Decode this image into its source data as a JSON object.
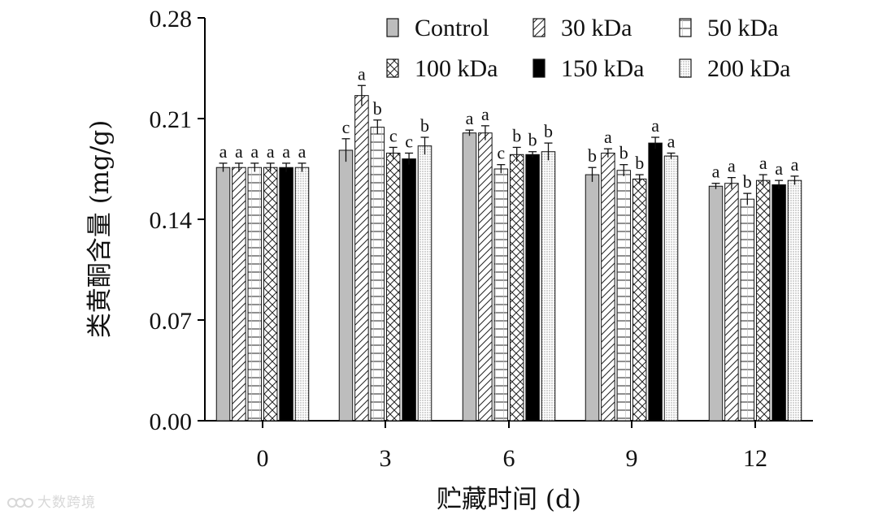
{
  "chart_data": {
    "type": "bar",
    "title": "",
    "xlabel": "贮藏时间 (d)",
    "ylabel": "类黄酮含量 (mg/g)",
    "ylim": [
      0,
      0.28
    ],
    "yticks": [
      "0.00",
      "0.07",
      "0.14",
      "0.21",
      "0.28"
    ],
    "categories": [
      "0",
      "3",
      "6",
      "9",
      "12"
    ],
    "grid": false,
    "legend_position": "top-right",
    "series": [
      {
        "name": "Control",
        "pattern": "gray",
        "values": [
          0.176,
          0.188,
          0.2,
          0.171,
          0.163
        ],
        "errors": [
          0.003,
          0.008,
          0.002,
          0.005,
          0.002
        ],
        "labels": [
          "a",
          "c",
          "a",
          "b",
          "a"
        ]
      },
      {
        "name": "30 kDa",
        "pattern": "diagonal",
        "values": [
          0.176,
          0.226,
          0.2,
          0.186,
          0.165
        ],
        "errors": [
          0.003,
          0.007,
          0.005,
          0.003,
          0.004
        ],
        "labels": [
          "a",
          "a",
          "a",
          "a",
          "a"
        ]
      },
      {
        "name": "50 kDa",
        "pattern": "horizontal",
        "values": [
          0.176,
          0.204,
          0.175,
          0.174,
          0.154
        ],
        "errors": [
          0.003,
          0.005,
          0.003,
          0.004,
          0.004
        ],
        "labels": [
          "a",
          "b",
          "c",
          "b",
          "b"
        ]
      },
      {
        "name": "100 kDa",
        "pattern": "crosshatch",
        "values": [
          0.176,
          0.186,
          0.185,
          0.168,
          0.167
        ],
        "errors": [
          0.003,
          0.004,
          0.005,
          0.003,
          0.004
        ],
        "labels": [
          "a",
          "c",
          "b",
          "b",
          "a"
        ]
      },
      {
        "name": "150 kDa",
        "pattern": "black",
        "values": [
          0.176,
          0.182,
          0.185,
          0.193,
          0.164
        ],
        "errors": [
          0.003,
          0.004,
          0.002,
          0.004,
          0.003
        ],
        "labels": [
          "a",
          "c",
          "b",
          "a",
          "a"
        ]
      },
      {
        "name": "200 kDa",
        "pattern": "dots",
        "values": [
          0.176,
          0.191,
          0.187,
          0.184,
          0.167
        ],
        "errors": [
          0.003,
          0.006,
          0.006,
          0.002,
          0.003
        ],
        "labels": [
          "a",
          "b",
          "b",
          "a",
          "a"
        ]
      }
    ]
  },
  "watermark": "大数跨境"
}
